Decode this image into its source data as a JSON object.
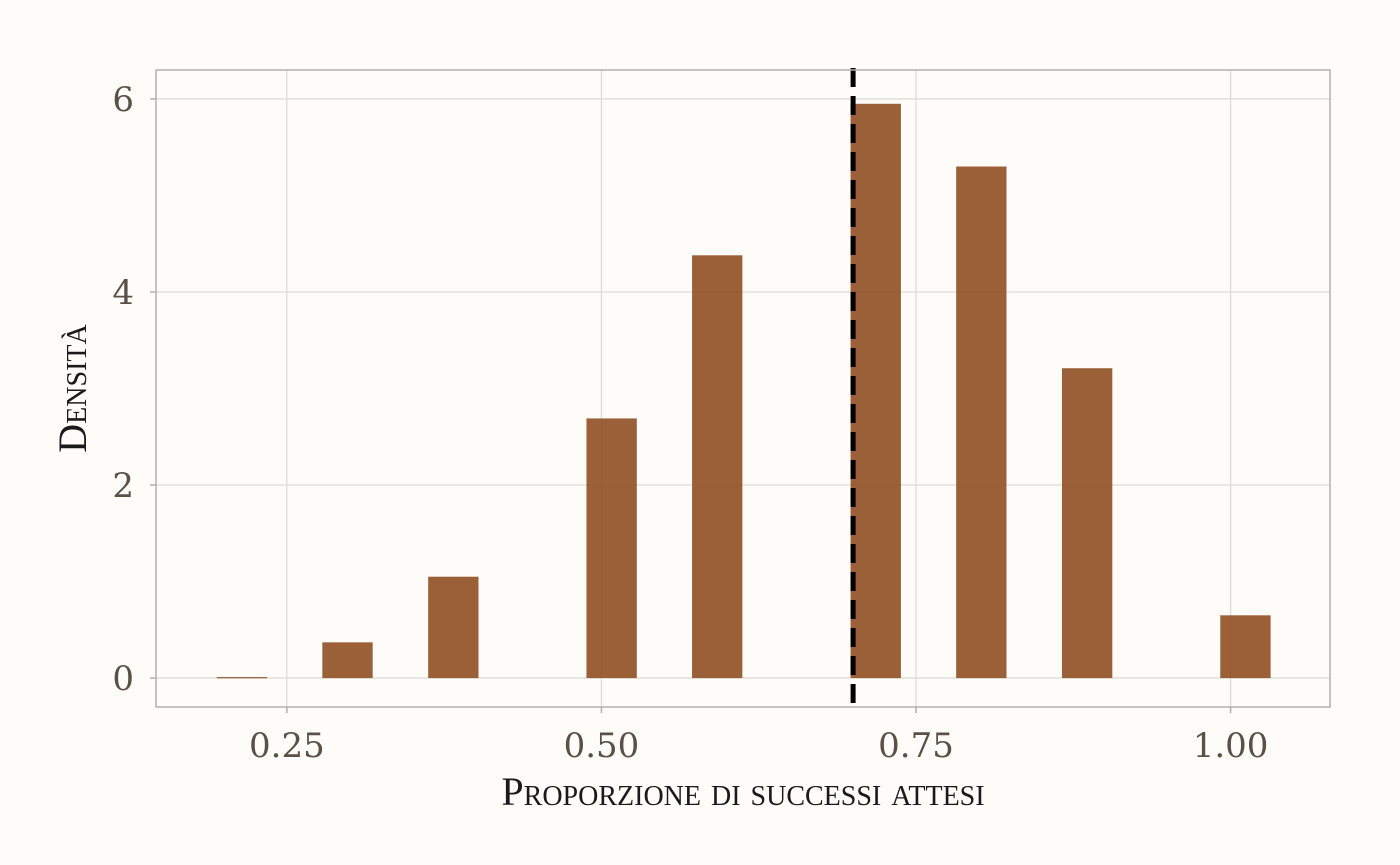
{
  "chart_data": {
    "type": "bar",
    "xlabel": "Proporzione di successi attesi",
    "ylabel": "Densità",
    "xlim": [
      0.146,
      1.079
    ],
    "ylim": [
      -0.3,
      6.3
    ],
    "x_ticks": [
      0.25,
      0.5,
      0.75,
      1.0
    ],
    "x_tick_labels": [
      "0.25",
      "0.50",
      "0.75",
      "1.00"
    ],
    "y_ticks": [
      0,
      2,
      4,
      6
    ],
    "y_tick_labels": [
      "0",
      "2",
      "4",
      "6"
    ],
    "bar_width": 0.04,
    "bars": [
      {
        "x": 0.2143,
        "value": 0.01
      },
      {
        "x": 0.2982,
        "value": 0.37
      },
      {
        "x": 0.3823,
        "value": 1.05
      },
      {
        "x": 0.5081,
        "value": 2.69
      },
      {
        "x": 0.592,
        "value": 4.38
      },
      {
        "x": 0.718,
        "value": 5.95
      },
      {
        "x": 0.8019,
        "value": 5.3
      },
      {
        "x": 0.886,
        "value": 3.21
      },
      {
        "x": 1.0118,
        "value": 0.65
      }
    ],
    "reference_line": {
      "x": 0.7,
      "style": "dashed"
    },
    "grid": true,
    "bar_color": "#8e4a1c",
    "bar_opacity": 0.88,
    "line_color": "#000000",
    "grid_color": "#dedcd6",
    "frame_color": "#b3b0aa"
  }
}
